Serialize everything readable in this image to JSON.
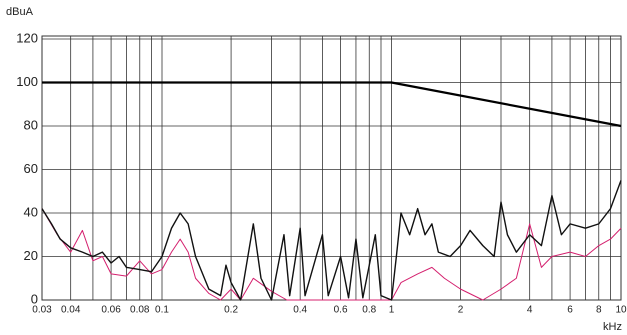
{
  "chart_data": {
    "type": "line",
    "y_label": "dBuA",
    "x_label": "kHz",
    "xlog": true,
    "grid": true,
    "xlim": [
      0.03,
      10
    ],
    "ylim": [
      0,
      120
    ],
    "xticks": [
      0.03,
      0.04,
      0.06,
      0.08,
      0.1,
      0.2,
      0.4,
      0.6,
      0.8,
      1,
      2,
      4,
      6,
      8,
      10
    ],
    "xgrid_minor": [
      0.05,
      0.07,
      0.09,
      0.3,
      0.5,
      0.7,
      0.9,
      3,
      5,
      7,
      9
    ],
    "yticks": [
      0,
      20,
      40,
      60,
      80,
      100,
      120
    ],
    "series": [
      {
        "color": "#000000",
        "width": 2.2,
        "x": [
          0.03,
          1,
          10
        ],
        "values": [
          100,
          100,
          80
        ]
      },
      {
        "color": "#d4206e",
        "width": 1,
        "x": [
          0.03,
          0.035,
          0.04,
          0.045,
          0.05,
          0.055,
          0.06,
          0.07,
          0.08,
          0.09,
          0.1,
          0.11,
          0.12,
          0.13,
          0.14,
          0.16,
          0.18,
          0.2,
          0.22,
          0.25,
          0.3,
          0.35,
          0.5,
          0.8,
          1,
          1.1,
          1.3,
          1.5,
          1.7,
          2,
          2.5,
          3,
          3.5,
          4,
          4.5,
          5,
          6,
          7,
          8,
          9,
          10
        ],
        "values": [
          42,
          30,
          22,
          32,
          18,
          20,
          12,
          11,
          18,
          12,
          14,
          22,
          28,
          22,
          10,
          3,
          0,
          5,
          0,
          10,
          4,
          0,
          0,
          0,
          0,
          8,
          12,
          15,
          10,
          5,
          0,
          5,
          10,
          35,
          15,
          20,
          22,
          20,
          25,
          28,
          33
        ]
      },
      {
        "color": "#111111",
        "width": 1.4,
        "x": [
          0.03,
          0.033,
          0.036,
          0.04,
          0.045,
          0.05,
          0.055,
          0.06,
          0.065,
          0.07,
          0.08,
          0.09,
          0.1,
          0.11,
          0.12,
          0.13,
          0.14,
          0.16,
          0.18,
          0.19,
          0.2,
          0.22,
          0.25,
          0.27,
          0.3,
          0.34,
          0.36,
          0.4,
          0.42,
          0.5,
          0.53,
          0.6,
          0.65,
          0.7,
          0.75,
          0.85,
          0.9,
          1,
          1.05,
          1.1,
          1.2,
          1.3,
          1.4,
          1.5,
          1.6,
          1.8,
          2,
          2.2,
          2.5,
          2.8,
          3,
          3.2,
          3.5,
          4,
          4.5,
          5,
          5.5,
          6,
          7,
          8,
          9,
          10
        ],
        "values": [
          42,
          35,
          28,
          24,
          22,
          20,
          22,
          17,
          20,
          15,
          14,
          13,
          20,
          33,
          40,
          35,
          20,
          5,
          2,
          16,
          8,
          0,
          35,
          10,
          0,
          30,
          2,
          33,
          2,
          30,
          2,
          20,
          1,
          28,
          1,
          30,
          2,
          0,
          20,
          40,
          30,
          42,
          30,
          35,
          22,
          20,
          25,
          32,
          25,
          20,
          45,
          30,
          22,
          30,
          25,
          48,
          30,
          35,
          33,
          35,
          42,
          55
        ]
      }
    ]
  }
}
